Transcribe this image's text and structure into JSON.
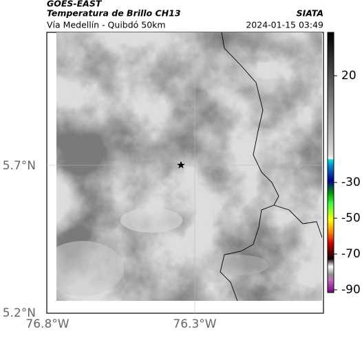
{
  "header": {
    "line1": "GOES-EAST",
    "line2": "Temperatura de Brillo CH13",
    "source": "SIATA",
    "location": "Vía Medellín - Quibdó 50km",
    "datetime": "2024-01-15 03:49"
  },
  "map": {
    "xtick_labels": [
      "76.8°W",
      "76.3°W"
    ],
    "ytick_labels": [
      "5.7°N",
      "5.2°N"
    ]
  },
  "colorbar": {
    "ticks": [
      20,
      -30,
      -50,
      -70,
      -90
    ]
  }
}
